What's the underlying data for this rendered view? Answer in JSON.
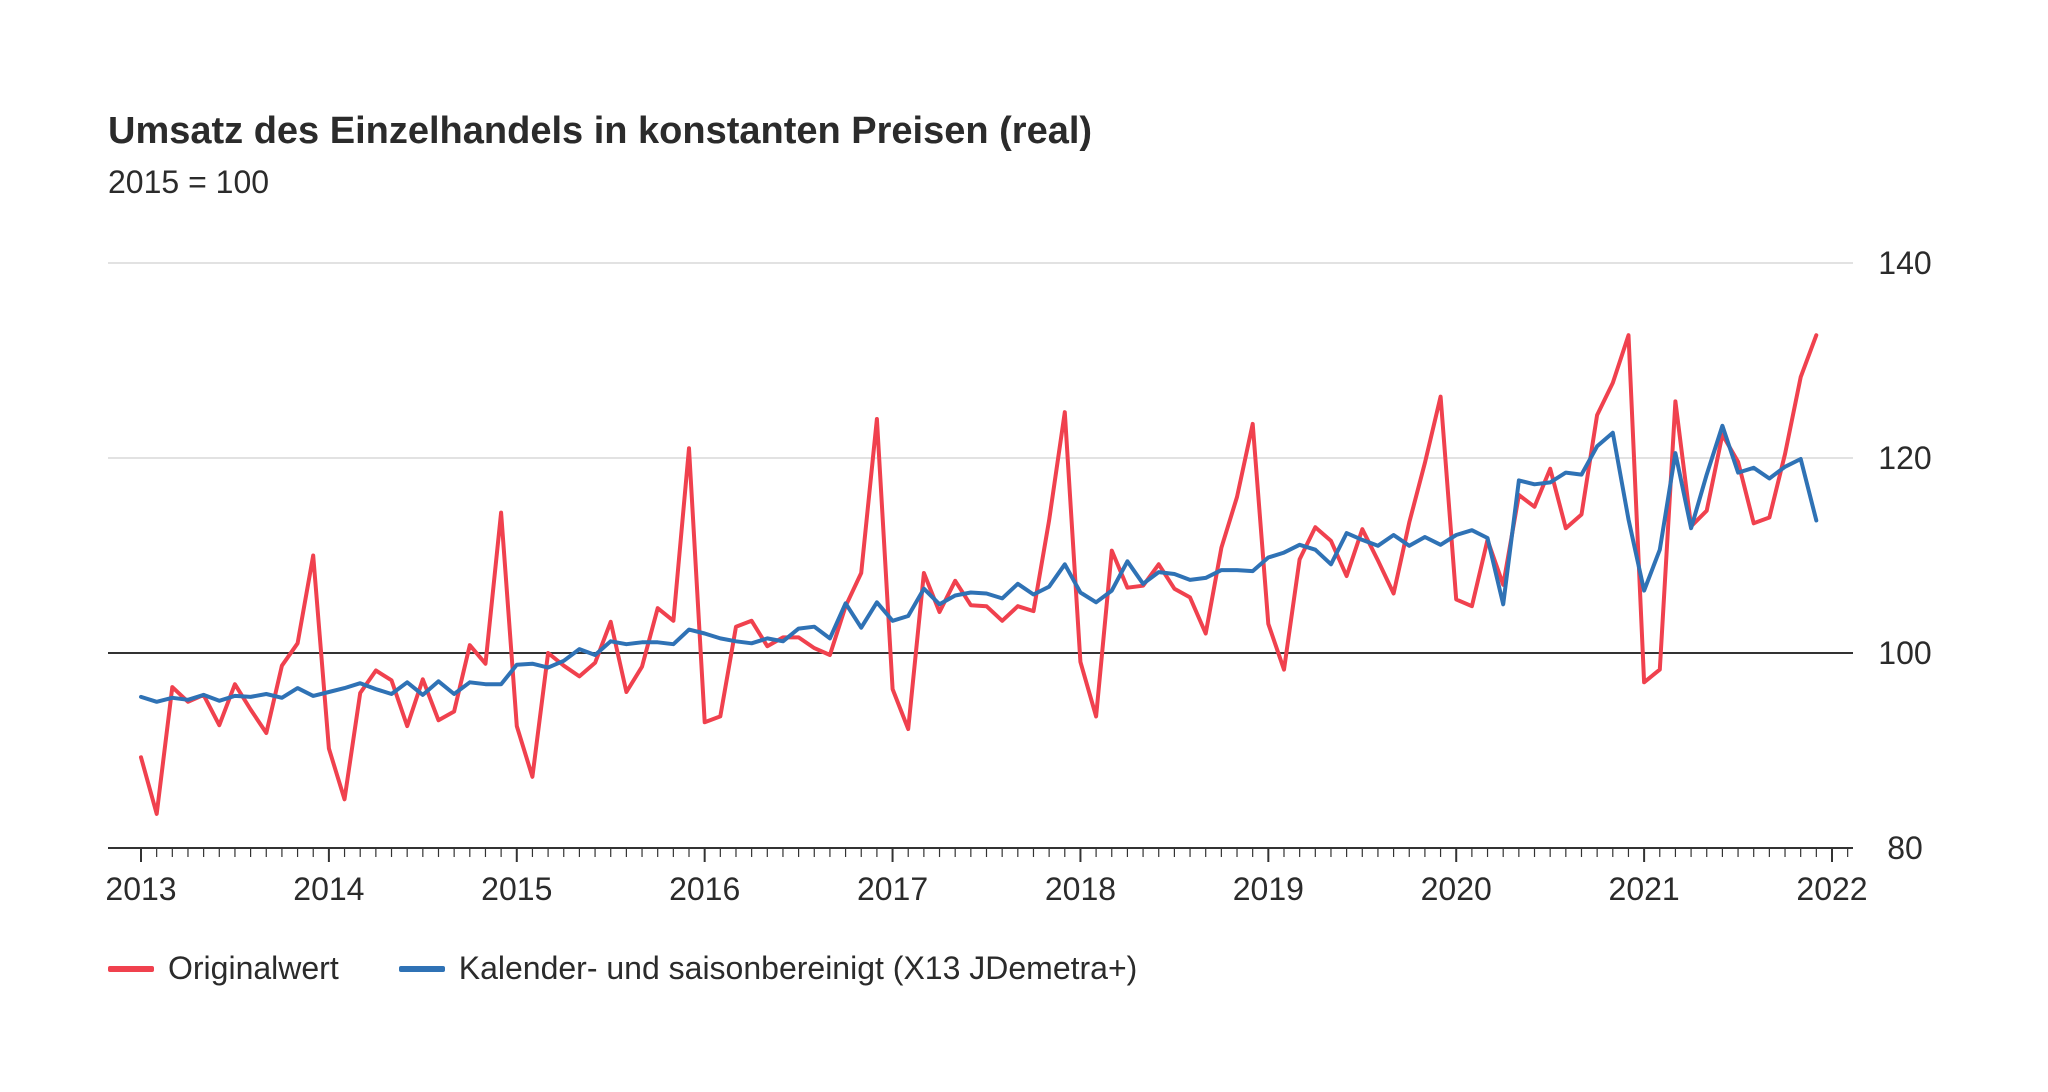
{
  "chart_data": {
    "type": "line",
    "title": "Umsatz des Einzelhandels in konstanten Preisen (real)",
    "subtitle": "2015 = 100",
    "xlabel": "",
    "ylabel": "",
    "ylim": [
      80,
      140
    ],
    "yticks": [
      "140",
      "120",
      "100",
      "80"
    ],
    "ytick_values": [
      140,
      120,
      100,
      80
    ],
    "xticks": [
      "2013",
      "2014",
      "2015",
      "2016",
      "2017",
      "2018",
      "2019",
      "2020",
      "2021",
      "2022"
    ],
    "xlim": [
      2013,
      2022
    ],
    "baseline": 100,
    "grid": true,
    "legend_position": "bottom-left",
    "x_start": "2013-01",
    "x_frequency": "monthly",
    "series": [
      {
        "name": "Originalwert",
        "color": "#f0414e",
        "values": [
          89.3,
          83.5,
          96.5,
          95.0,
          95.7,
          92.6,
          96.8,
          94.2,
          91.8,
          98.7,
          101.0,
          110.0,
          90.2,
          85.0,
          95.9,
          98.2,
          97.2,
          92.5,
          97.3,
          93.1,
          94.0,
          100.8,
          98.9,
          114.4,
          92.5,
          87.3,
          100.0,
          98.7,
          97.6,
          99.0,
          103.2,
          96.0,
          98.6,
          104.6,
          103.3,
          121.0,
          92.9,
          93.5,
          102.7,
          103.3,
          100.7,
          101.6,
          101.6,
          100.5,
          99.8,
          104.8,
          108.2,
          124.0,
          96.3,
          92.2,
          108.2,
          104.2,
          107.4,
          104.9,
          104.8,
          103.3,
          104.8,
          104.3,
          113.6,
          124.7,
          99.1,
          93.5,
          110.5,
          106.7,
          106.9,
          109.1,
          106.6,
          105.7,
          102.0,
          110.8,
          116.0,
          123.5,
          103.0,
          98.3,
          109.6,
          112.9,
          111.5,
          107.9,
          112.7,
          109.5,
          106.1,
          113.4,
          119.5,
          126.3,
          105.5,
          104.8,
          111.6,
          107.0,
          116.2,
          115.0,
          118.9,
          112.8,
          114.2,
          124.4,
          127.7,
          132.6,
          97.0,
          98.3,
          125.8,
          113.0,
          114.6,
          122.4,
          119.6,
          113.3,
          113.9,
          120.4,
          128.3,
          132.6
        ]
      },
      {
        "name": "Kalender- und saisonbereinigt (X13 JDemetra+)",
        "color": "#2f72b5",
        "values": [
          95.5,
          95.0,
          95.4,
          95.2,
          95.7,
          95.1,
          95.6,
          95.5,
          95.8,
          95.4,
          96.4,
          95.6,
          96.0,
          96.4,
          96.9,
          96.3,
          95.8,
          97.0,
          95.7,
          97.1,
          95.8,
          97.0,
          96.8,
          96.8,
          98.8,
          98.9,
          98.5,
          99.2,
          100.4,
          99.8,
          101.2,
          100.9,
          101.1,
          101.1,
          100.9,
          102.4,
          102.0,
          101.5,
          101.2,
          101.0,
          101.5,
          101.2,
          102.5,
          102.7,
          101.5,
          105.1,
          102.6,
          105.2,
          103.3,
          103.8,
          106.6,
          105.0,
          105.9,
          106.2,
          106.1,
          105.6,
          107.1,
          106.0,
          106.8,
          109.1,
          106.2,
          105.2,
          106.4,
          109.4,
          107.1,
          108.3,
          108.1,
          107.5,
          107.7,
          108.5,
          108.5,
          108.4,
          109.8,
          110.3,
          111.1,
          110.6,
          109.1,
          112.3,
          111.6,
          111.0,
          112.1,
          111.0,
          111.9,
          111.1,
          112.1,
          112.6,
          111.8,
          105.0,
          117.7,
          117.3,
          117.5,
          118.5,
          118.3,
          121.2,
          122.6,
          113.7,
          106.4,
          110.6,
          120.5,
          112.8,
          118.3,
          123.3,
          118.5,
          119.0,
          117.9,
          119.1,
          119.9,
          113.6
        ]
      }
    ]
  }
}
